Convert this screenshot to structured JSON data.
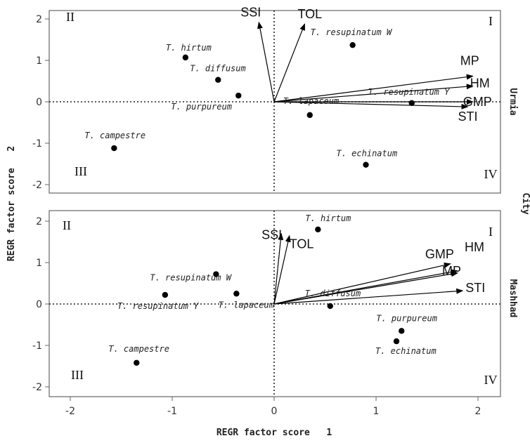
{
  "chart_data": {
    "type": "scatter",
    "xlabel": "REGR factor score   1",
    "ylabel": "REGR factor score   2",
    "facet_label": "City",
    "xlim": [
      -2.2,
      2.2
    ],
    "ylim": [
      -2.2,
      2.2
    ],
    "x_ticks": [
      -2,
      -1,
      0,
      1,
      2
    ],
    "y_ticks": [
      -2,
      -1,
      0,
      1,
      2
    ],
    "reference_lines": "dotted lines at x=0 and y=0",
    "panels": [
      {
        "city": "Urmia",
        "quadrants": {
          "top_left": "II",
          "top_right": "I",
          "bottom_left": "III",
          "bottom_right": "IV"
        },
        "points": [
          {
            "name": "T. hirtum",
            "x": -0.87,
            "y": 1.07
          },
          {
            "name": "T. diffusum",
            "x": -0.55,
            "y": 0.53
          },
          {
            "name": "T. purpureum",
            "x": -0.35,
            "y": 0.15
          },
          {
            "name": "T. campestre",
            "x": -1.57,
            "y": -1.12
          },
          {
            "name": "T. resupinatum W",
            "x": 0.77,
            "y": 1.37
          },
          {
            "name": "T. resupinatum Y",
            "x": 1.35,
            "y": -0.03
          },
          {
            "name": "T. lapaceum",
            "x": 0.35,
            "y": -0.32
          },
          {
            "name": "T. echinatum",
            "x": 0.9,
            "y": -1.52
          }
        ],
        "vectors": [
          {
            "name": "SSI",
            "x": -0.15,
            "y": 1.92
          },
          {
            "name": "TOL",
            "x": 0.3,
            "y": 1.88
          },
          {
            "name": "MP",
            "x": 1.95,
            "y": 0.62
          },
          {
            "name": "HM",
            "x": 1.95,
            "y": 0.38
          },
          {
            "name": "GMP",
            "x": 1.95,
            "y": 0.0
          },
          {
            "name": "STI",
            "x": 1.9,
            "y": -0.12
          }
        ]
      },
      {
        "city": "Mashhad",
        "quadrants": {
          "top_left": "II",
          "top_right": "I",
          "bottom_left": "III",
          "bottom_right": "IV"
        },
        "points": [
          {
            "name": "T. hirtum",
            "x": 0.43,
            "y": 1.8
          },
          {
            "name": "T. resupinatum W",
            "x": -0.57,
            "y": 0.72
          },
          {
            "name": "T. resupinatum Y",
            "x": -1.07,
            "y": 0.22
          },
          {
            "name": "T. lapaceum",
            "x": -0.37,
            "y": 0.25
          },
          {
            "name": "T. diffusum",
            "x": 0.55,
            "y": -0.05
          },
          {
            "name": "T. campestre",
            "x": -1.35,
            "y": -1.42
          },
          {
            "name": "T. purpureum",
            "x": 1.25,
            "y": -0.65
          },
          {
            "name": "T. echinatum",
            "x": 1.2,
            "y": -0.9
          }
        ],
        "vectors": [
          {
            "name": "SSI",
            "x": 0.07,
            "y": 1.7
          },
          {
            "name": "TOL",
            "x": 0.15,
            "y": 1.65
          },
          {
            "name": "GMP",
            "x": 1.73,
            "y": 0.97
          },
          {
            "name": "HM",
            "x": 1.8,
            "y": 0.8
          },
          {
            "name": "MP",
            "x": 1.8,
            "y": 0.75
          },
          {
            "name": "STI",
            "x": 1.85,
            "y": 0.32
          }
        ]
      }
    ]
  }
}
